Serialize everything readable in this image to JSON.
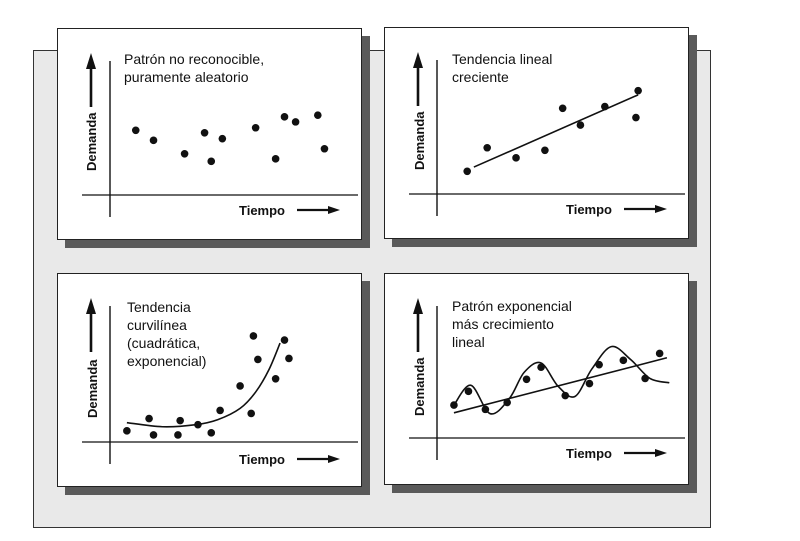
{
  "axes": {
    "ylabel": "Demanda",
    "xlabel": "Tiempo"
  },
  "panels": [
    {
      "title_lines": [
        "Patrón no reconocible,",
        "puramente aleatorio"
      ]
    },
    {
      "title_lines": [
        "Tendencia lineal",
        "creciente"
      ]
    },
    {
      "title_lines": [
        "Tendencia",
        "curvilínea",
        "(cuadrática,",
        "exponencial)"
      ]
    },
    {
      "title_lines": [
        "Patrón exponencial",
        "más crecimiento",
        "lineal"
      ]
    }
  ],
  "chart_data": [
    {
      "type": "scatter",
      "title": "Patrón no reconocible, puramente aleatorio",
      "xlabel": "Tiempo",
      "ylabel": "Demanda",
      "xlim": [
        0,
        100
      ],
      "ylim": [
        0,
        100
      ],
      "points": [
        [
          8,
          58
        ],
        [
          16,
          46
        ],
        [
          30,
          30
        ],
        [
          39,
          55
        ],
        [
          42,
          21
        ],
        [
          47,
          48
        ],
        [
          62,
          61
        ],
        [
          71,
          24
        ],
        [
          75,
          74
        ],
        [
          80,
          68
        ],
        [
          90,
          76
        ],
        [
          93,
          36
        ]
      ]
    },
    {
      "type": "scatter",
      "title": "Tendencia lineal creciente",
      "xlabel": "Tiempo",
      "ylabel": "Demanda",
      "xlim": [
        0,
        100
      ],
      "ylim": [
        0,
        100
      ],
      "points": [
        [
          10,
          8
        ],
        [
          19,
          36
        ],
        [
          32,
          24
        ],
        [
          45,
          33
        ],
        [
          53,
          83
        ],
        [
          61,
          63
        ],
        [
          72,
          85
        ],
        [
          86,
          72
        ],
        [
          87,
          104
        ]
      ],
      "trend_line": [
        [
          13,
          13
        ],
        [
          87,
          99
        ]
      ]
    },
    {
      "type": "scatter",
      "title": "Tendencia curvilínea (cuadrática, exponencial)",
      "xlabel": "Tiempo",
      "ylabel": "Demanda",
      "xlim": [
        0,
        100
      ],
      "ylim": [
        0,
        100
      ],
      "points": [
        [
          4,
          9
        ],
        [
          14,
          21
        ],
        [
          16,
          5
        ],
        [
          27,
          5
        ],
        [
          28,
          19
        ],
        [
          36,
          15
        ],
        [
          42,
          7
        ],
        [
          46,
          29
        ],
        [
          55,
          53
        ],
        [
          60,
          26
        ],
        [
          61,
          102
        ],
        [
          63,
          79
        ],
        [
          71,
          60
        ],
        [
          75,
          98
        ],
        [
          77,
          80
        ]
      ],
      "trend_curve": [
        [
          4,
          17
        ],
        [
          20,
          13
        ],
        [
          35,
          15
        ],
        [
          45,
          20
        ],
        [
          55,
          31
        ],
        [
          62,
          47
        ],
        [
          68,
          69
        ],
        [
          73,
          95
        ]
      ]
    },
    {
      "type": "scatter",
      "title": "Patrón exponencial más crecimiento lineal",
      "xlabel": "Tiempo",
      "ylabel": "Demanda",
      "xlim": [
        0,
        100
      ],
      "ylim": [
        0,
        100
      ],
      "points": [
        [
          7,
          22
        ],
        [
          13,
          38
        ],
        [
          20,
          17
        ],
        [
          29,
          25
        ],
        [
          37,
          52
        ],
        [
          43,
          66
        ],
        [
          53,
          33
        ],
        [
          63,
          47
        ],
        [
          67,
          69
        ],
        [
          77,
          74
        ],
        [
          86,
          53
        ],
        [
          92,
          82
        ]
      ],
      "trend_line": [
        [
          7,
          13
        ],
        [
          95,
          77
        ]
      ],
      "trend_curve": [
        [
          7,
          22
        ],
        [
          14,
          45
        ],
        [
          22,
          12
        ],
        [
          30,
          30
        ],
        [
          36,
          60
        ],
        [
          43,
          71
        ],
        [
          50,
          44
        ],
        [
          57,
          32
        ],
        [
          64,
          64
        ],
        [
          72,
          90
        ],
        [
          80,
          75
        ],
        [
          88,
          53
        ],
        [
          96,
          48
        ]
      ]
    }
  ]
}
